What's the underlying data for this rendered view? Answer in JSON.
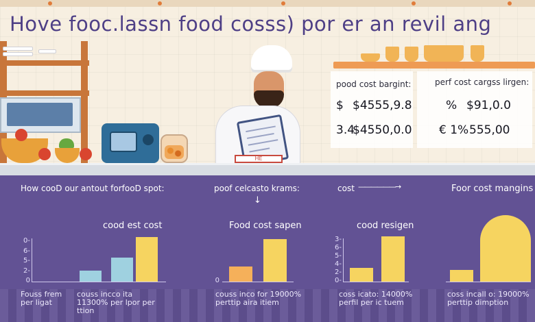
{
  "title": "Hove fooc.lassn food cosss) por er an revil ang",
  "stats": {
    "col1_header": "pood cost bargint:",
    "col2_header": "perf cost cargss lirgen:",
    "rows": [
      [
        "$",
        "$4555,9.8",
        "%",
        "$91,0.0"
      ],
      [
        "3.4",
        "$4550,0.0",
        "€ 1%",
        "555,00"
      ]
    ]
  },
  "board_label": "HE",
  "sections": [
    {
      "header": "How cooD our antout forfooD spot:",
      "chart_title": "cood est cost",
      "ticks": [
        "0-",
        "6-",
        "5-",
        "2-",
        "0"
      ],
      "caption": "Fouss frem per ligat",
      "caption2": "couss incco ita 11300% per lpor per ttion"
    },
    {
      "header": "poof celcasto krams:",
      "arrow": "↓",
      "chart_title": "Food cost sapen",
      "ticks": [
        "0"
      ],
      "caption": "couss inco for 19000% perttip aira itiem"
    },
    {
      "header": "cost",
      "arrow": "——————→",
      "chart_title": "cood resigen",
      "ticks": [
        "3-",
        "6-",
        "5-",
        "4-",
        "2-",
        "0-"
      ],
      "caption": "coss icato: 14000% perfil per ic tuem"
    },
    {
      "header": "Foor cost mangins",
      "chart_title": "",
      "ticks": [],
      "caption": "coss incall o: 19000% perttip dimption"
    }
  ],
  "chart_data": [
    {
      "type": "bar",
      "title": "cood est cost",
      "categories": [
        "",
        "",
        ""
      ],
      "values": [
        0.16,
        0.35,
        0.65
      ],
      "colors": [
        "#9fd1e0",
        "#9fd1e0",
        "#f6d460"
      ]
    },
    {
      "type": "bar",
      "title": "Food cost sapen",
      "categories": [
        "",
        ""
      ],
      "values": [
        0.22,
        0.62
      ],
      "colors": [
        "#f5b05a",
        "#f6d460"
      ]
    },
    {
      "type": "bar",
      "title": "cood resigen",
      "categories": [
        "",
        ""
      ],
      "values": [
        0.2,
        0.66
      ],
      "colors": [
        "#f6d460",
        "#f6d460"
      ]
    },
    {
      "type": "bar",
      "title": "",
      "categories": [
        "",
        ""
      ],
      "values": [
        0.17,
        0.97
      ],
      "colors": [
        "#f6d460",
        "#f6d460"
      ]
    }
  ]
}
